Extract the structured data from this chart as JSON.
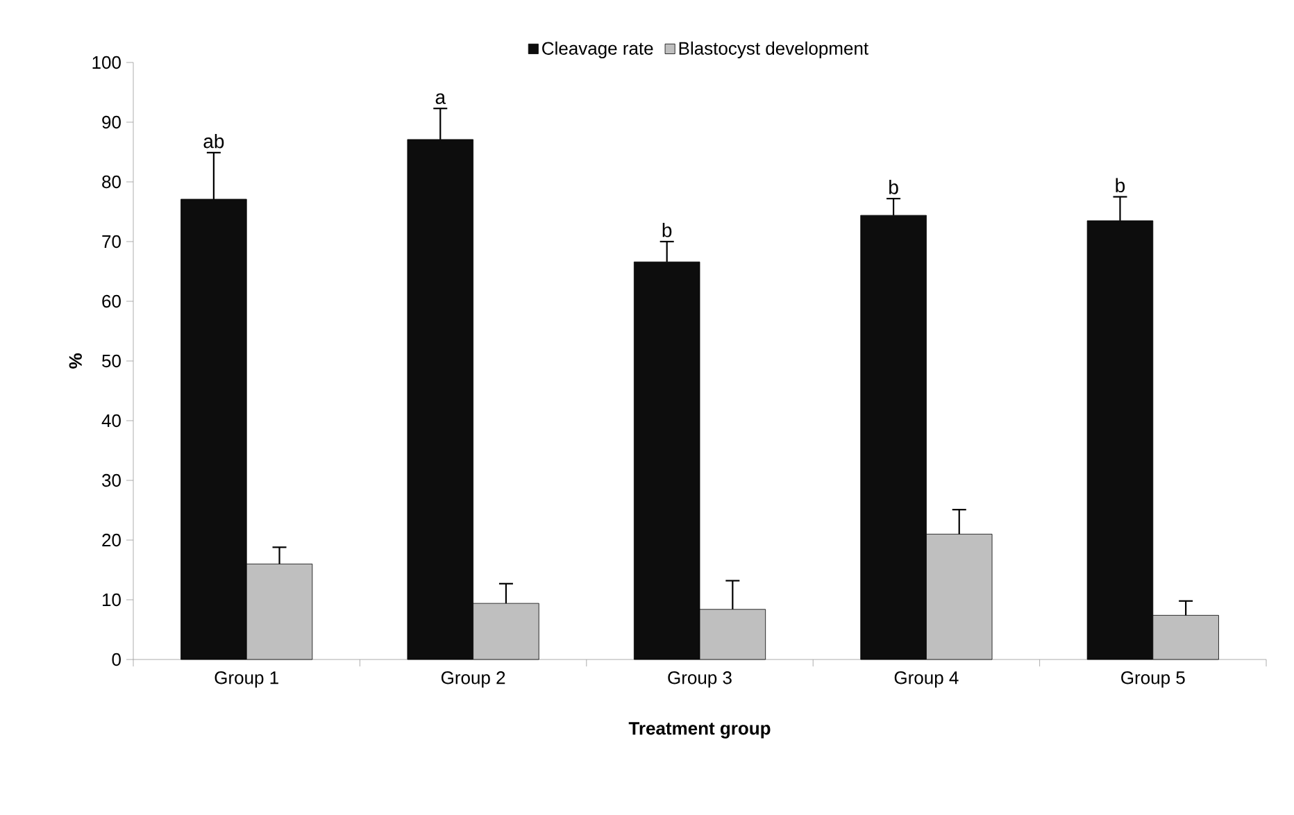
{
  "chart_data": {
    "type": "bar",
    "xlabel": "Treatment group",
    "ylabel": "%",
    "categories": [
      "Group 1",
      "Group 2",
      "Group 3",
      "Group 4",
      "Group 5"
    ],
    "series": [
      {
        "name": "Cleavage rate",
        "color": "#0d0d0d",
        "values": [
          77.1,
          87.1,
          66.6,
          74.4,
          73.5
        ],
        "errors": [
          [
            77.1,
            84.9
          ],
          [
            87.1,
            92.3
          ],
          [
            66.6,
            70.0
          ],
          [
            74.4,
            77.2
          ],
          [
            73.5,
            77.5
          ]
        ]
      },
      {
        "name": "Blastocyst development",
        "color": "#bfbfbf",
        "values": [
          16.0,
          9.4,
          8.4,
          21.0,
          7.4
        ],
        "errors": [
          [
            16.0,
            18.8
          ],
          [
            9.4,
            12.7
          ],
          [
            8.4,
            13.2
          ],
          [
            21.0,
            25.1
          ],
          [
            7.4,
            9.8
          ]
        ]
      }
    ],
    "ylim": [
      0,
      100
    ],
    "yticks": [
      0,
      10,
      20,
      30,
      40,
      50,
      60,
      70,
      80,
      90,
      100
    ],
    "annotations": [
      "ab",
      "a",
      "b",
      "b",
      "b"
    ],
    "legend": "top",
    "grid": false
  }
}
